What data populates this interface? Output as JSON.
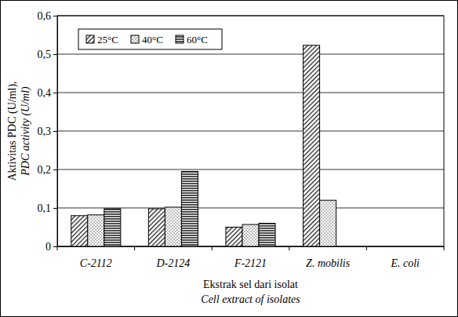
{
  "chart_data": {
    "type": "bar",
    "y_label": [
      "Aktivitas PDC (U/ml),",
      "PDC activity (U/ml)"
    ],
    "x_label": [
      "Ekstrak sel dari isolat",
      "Cell extract of isolates"
    ],
    "categories": [
      "C-2112",
      "D-2124",
      "F-2121",
      "Z. mobilis",
      "E. coli"
    ],
    "series": [
      {
        "name": "25°C",
        "color": "#222222",
        "values": [
          0.08,
          0.098,
          0.05,
          0.523,
          0
        ]
      },
      {
        "name": "40°C",
        "color": "#444444",
        "values": [
          0.082,
          0.102,
          0.057,
          0.12,
          0
        ]
      },
      {
        "name": "60°C",
        "color": "#222222",
        "values": [
          0.098,
          0.195,
          0.06,
          0,
          0
        ]
      }
    ],
    "ylim": [
      0,
      0.6
    ],
    "yticks": [
      0,
      {
        "value": 0.1,
        "label": "0,1"
      },
      {
        "value": 0.2,
        "label": "0,2"
      },
      {
        "value": 0.3,
        "label": "0,3"
      },
      {
        "value": 0.4,
        "label": "0,4"
      },
      {
        "value": 0.5,
        "label": "0,5"
      },
      {
        "value": 0.6,
        "label": "0,6"
      }
    ],
    "grid": true,
    "legend": "top-left"
  }
}
